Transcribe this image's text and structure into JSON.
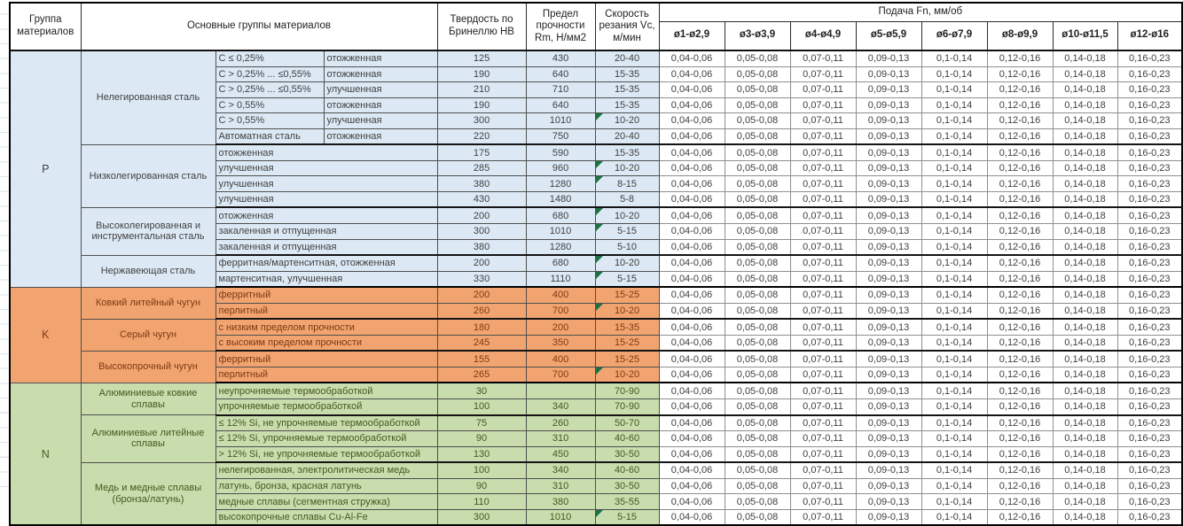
{
  "header": {
    "col_group": "Группа материалов",
    "col_main_groups": "Основные группы материалов",
    "col_hardness": "Твердость по Бринеллю HB",
    "col_strength": "Предел прочности Rm, Н/мм2",
    "col_speed": "Скорость резания Vc, м/мин",
    "feed_title": "Подача Fn, мм/об",
    "feed_cols": [
      "ø1-ø2,9",
      "ø3-ø3,9",
      "ø4-ø4,9",
      "ø5-ø5,9",
      "ø6-ø7,9",
      "ø8-ø9,9",
      "ø10-ø11,5",
      "ø12-ø16"
    ]
  },
  "feed_values": [
    "0,04-0,06",
    "0,05-0,08",
    "0,07-0,11",
    "0,09-0,13",
    "0,1-0,14",
    "0,12-0,16",
    "0,14-0,18",
    "0,16-0,23"
  ],
  "colors": {
    "group_p_bg": "#dce9f5",
    "group_p_text": "#404040",
    "group_k_bg": "#f2a470",
    "group_k_text": "#7c3a12",
    "group_n_bg": "#c8dcad",
    "group_n_text": "#46591f",
    "comment_marker_green": "#1e7145",
    "border_dark": "#000000",
    "feed_cell_bg": "#ffffff"
  },
  "groups": [
    {
      "letter": "P",
      "bg": "#dce9f5",
      "text": "#404040",
      "subgroups": [
        {
          "name": "Нелегированная сталь",
          "rows": [
            {
              "cells": [
                "C ≤ 0,25%",
                "отожженная"
              ],
              "hb": "125",
              "rm": "430",
              "vc": "20-40",
              "flag": false
            },
            {
              "cells": [
                "C > 0,25% ... ≤0,55%",
                "отожженная"
              ],
              "hb": "190",
              "rm": "640",
              "vc": "15-35",
              "flag": false
            },
            {
              "cells": [
                "C > 0,25% ... ≤0,55%",
                "улучшенная"
              ],
              "hb": "210",
              "rm": "710",
              "vc": "15-35",
              "flag": false
            },
            {
              "cells": [
                "C > 0,55%",
                "отожженная"
              ],
              "hb": "190",
              "rm": "640",
              "vc": "15-35",
              "flag": false
            },
            {
              "cells": [
                "C > 0,55%",
                "улучшенная"
              ],
              "hb": "300",
              "rm": "1010",
              "vc": "10-20",
              "flag": true
            },
            {
              "cells": [
                "Автоматная сталь",
                "отожженная"
              ],
              "hb": "220",
              "rm": "750",
              "vc": "20-40",
              "flag": false
            }
          ]
        },
        {
          "name": "Низколегированная сталь",
          "rows": [
            {
              "cells": [
                "отожженная"
              ],
              "hb": "175",
              "rm": "590",
              "vc": "15-35",
              "flag": false
            },
            {
              "cells": [
                "улучшенная"
              ],
              "hb": "285",
              "rm": "960",
              "vc": "10-20",
              "flag": true
            },
            {
              "cells": [
                "улучшенная"
              ],
              "hb": "380",
              "rm": "1280",
              "vc": "8-15",
              "flag": true
            },
            {
              "cells": [
                "улучшенная"
              ],
              "hb": "430",
              "rm": "1480",
              "vc": "5-8",
              "flag": false
            }
          ]
        },
        {
          "name": "Высоколегированная и инструментальная сталь",
          "rows": [
            {
              "cells": [
                "отожженная"
              ],
              "hb": "200",
              "rm": "680",
              "vc": "10-20",
              "flag": true
            },
            {
              "cells": [
                "закаленная и отпущенная"
              ],
              "hb": "300",
              "rm": "1010",
              "vc": "5-15",
              "flag": true
            },
            {
              "cells": [
                "закаленная и отпущенная"
              ],
              "hb": "380",
              "rm": "1280",
              "vc": "5-10",
              "flag": false
            }
          ]
        },
        {
          "name": "Нержавеющая сталь",
          "rows": [
            {
              "cells": [
                "ферритная/мартенситная, отожженная"
              ],
              "hb": "200",
              "rm": "680",
              "vc": "10-20",
              "flag": true
            },
            {
              "cells": [
                "мартенситная, улучшенная"
              ],
              "hb": "330",
              "rm": "1110",
              "vc": "5-15",
              "flag": true
            }
          ]
        }
      ]
    },
    {
      "letter": "K",
      "bg": "#f2a470",
      "text": "#7c3a12",
      "subgroups": [
        {
          "name": "Ковкий литейный чугун",
          "rows": [
            {
              "cells": [
                "ферритный"
              ],
              "hb": "200",
              "rm": "400",
              "vc": "15-25",
              "flag": false
            },
            {
              "cells": [
                "перлитный"
              ],
              "hb": "260",
              "rm": "700",
              "vc": "10-20",
              "flag": true
            }
          ]
        },
        {
          "name": "Серый чугун",
          "rows": [
            {
              "cells": [
                "с низким пределом прочности"
              ],
              "hb": "180",
              "rm": "200",
              "vc": "15-35",
              "flag": false
            },
            {
              "cells": [
                "с высоким пределом прочности"
              ],
              "hb": "245",
              "rm": "350",
              "vc": "15-25",
              "flag": false
            }
          ]
        },
        {
          "name": "Высокопрочный чугун",
          "rows": [
            {
              "cells": [
                "ферритный"
              ],
              "hb": "155",
              "rm": "400",
              "vc": "15-25",
              "flag": false
            },
            {
              "cells": [
                "перлитный"
              ],
              "hb": "265",
              "rm": "700",
              "vc": "10-20",
              "flag": true
            }
          ]
        }
      ]
    },
    {
      "letter": "N",
      "bg": "#c8dcad",
      "text": "#46591f",
      "subgroups": [
        {
          "name": "Алюминиевые ковкие сплавы",
          "rows": [
            {
              "cells": [
                "неупрочняемые термообработкой"
              ],
              "hb": "30",
              "rm": "",
              "vc": "70-90",
              "flag": false
            },
            {
              "cells": [
                "упрочняемые термообработкой"
              ],
              "hb": "100",
              "rm": "340",
              "vc": "70-90",
              "flag": false
            }
          ]
        },
        {
          "name": "Алюминиевые литейные сплавы",
          "rows": [
            {
              "cells": [
                "≤ 12% Si, не упрочняемые термообработкой"
              ],
              "hb": "75",
              "rm": "260",
              "vc": "50-70",
              "flag": false
            },
            {
              "cells": [
                "≤ 12% Si, упрочняемые термообработкой"
              ],
              "hb": "90",
              "rm": "310",
              "vc": "40-60",
              "flag": false
            },
            {
              "cells": [
                "> 12% Si, не упрочняемые термообработкой"
              ],
              "hb": "130",
              "rm": "450",
              "vc": "30-50",
              "flag": false
            }
          ]
        },
        {
          "name": "Медь и медные сплавы (бронза/латунь)",
          "rows": [
            {
              "cells": [
                "нелегированная, электролитическая медь"
              ],
              "hb": "100",
              "rm": "340",
              "vc": "40-60",
              "flag": false
            },
            {
              "cells": [
                "латунь, бронза, красная латунь"
              ],
              "hb": "90",
              "rm": "310",
              "vc": "30-50",
              "flag": false
            },
            {
              "cells": [
                "медные сплавы (сегментная стружка)"
              ],
              "hb": "110",
              "rm": "380",
              "vc": "35-55",
              "flag": false
            },
            {
              "cells": [
                "высокопрочные сплавы Cu-Al-Fe"
              ],
              "hb": "300",
              "rm": "1010",
              "vc": "5-15",
              "flag": true
            }
          ]
        }
      ]
    }
  ]
}
